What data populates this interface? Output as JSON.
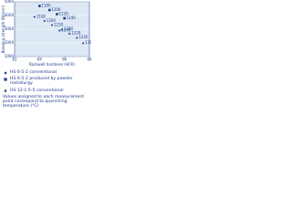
{
  "chart_data": {
    "type": "scatter",
    "x_label": "Rockwell hardness (HCR)",
    "y_label": "Bending strength (N/mm²)",
    "xlim": [
      62,
      68
    ],
    "xticks": [
      62,
      64,
      66,
      68
    ],
    "ylim": [
      1000,
      5000
    ],
    "yticks": [
      1000,
      2000,
      3000,
      4000,
      5000
    ],
    "series": [
      {
        "name": "HS 6-5-2 conventional",
        "color": "#1a3a8a",
        "marker": "diamond",
        "x": [
          63.6,
          64.4,
          65.0,
          65.6
        ],
        "values": [
          3900,
          3600,
          3300,
          2900
        ],
        "point_labels": [
          1180,
          1200,
          1220,
          1240
        ]
      },
      {
        "name": "HS 6-5-2 produced by powder metallurgy",
        "color": "#1a3a8a",
        "marker": "square",
        "x": [
          64.0,
          64.8,
          65.4,
          66.0
        ],
        "values": [
          4700,
          4400,
          4100,
          3800
        ],
        "point_labels": [
          1180,
          1200,
          1220,
          1240
        ]
      },
      {
        "name": "HS 12-1-5-5 conventional",
        "color": "#1a3a8a",
        "marker": "triangle",
        "x": [
          65.8,
          66.4,
          67.0,
          67.5
        ],
        "values": [
          3000,
          2700,
          2400,
          2000
        ],
        "point_labels": [
          1200,
          1220,
          1240,
          1260
        ]
      }
    ],
    "note": "Values assigned to each measurement point correspond to quenching temperature (°C)"
  }
}
